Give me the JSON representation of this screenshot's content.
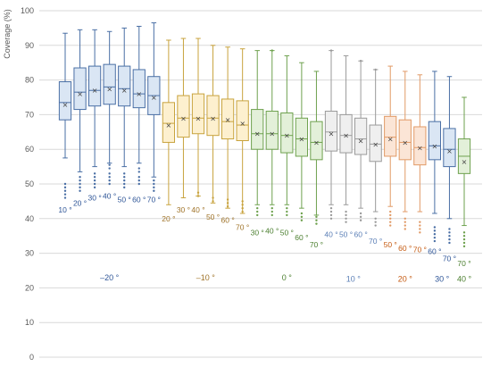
{
  "chart_data": {
    "type": "boxplot",
    "ylabel": "Coverage (%)",
    "ylim": [
      0,
      100
    ],
    "yticks": [
      0,
      10,
      20,
      30,
      40,
      50,
      60,
      70,
      80,
      90,
      100
    ],
    "grid": true,
    "mean_marker": "×",
    "groups": [
      {
        "label": "–20 °",
        "label_y": 23,
        "color": "#4a6fa5",
        "fill": "#dae6f4",
        "text_color": "#2e5597",
        "boxes": [
          {
            "label": "10 °",
            "label_y": 42.5,
            "min": 57.5,
            "q1": 68.5,
            "median": 73.5,
            "q3": 79.5,
            "max": 93.5,
            "mean": 73,
            "outliers": [
              50,
              49,
              48,
              47,
              46
            ]
          },
          {
            "label": "20 °",
            "label_y": 44.5,
            "min": 53.5,
            "q1": 71.5,
            "median": 76.5,
            "q3": 83.5,
            "max": 94.5,
            "mean": 76,
            "outliers": [
              52,
              51,
              50,
              49,
              48
            ]
          },
          {
            "label": "30 °",
            "label_y": 46,
            "min": 55,
            "q1": 72.5,
            "median": 77,
            "q3": 84,
            "max": 94.5,
            "mean": 77,
            "outliers": [
              53,
              52,
              51,
              50,
              49
            ]
          },
          {
            "label": "40 °",
            "label_y": 46.5,
            "min": 56,
            "q1": 73,
            "median": 78,
            "q3": 84.5,
            "max": 94,
            "mean": 77.5,
            "outliers": [
              55.5,
              54.5,
              53,
              52,
              51,
              50
            ]
          },
          {
            "label": "50 °",
            "label_y": 45.5,
            "min": 55,
            "q1": 72.5,
            "median": 77.5,
            "q3": 84,
            "max": 95,
            "mean": 77,
            "outliers": [
              53,
              52,
              51,
              50,
              49
            ]
          },
          {
            "label": "60 °",
            "label_y": 45.5,
            "min": 56,
            "q1": 72,
            "median": 76,
            "q3": 83,
            "max": 95.5,
            "mean": 76,
            "outliers": [
              54.5,
              53.5,
              52,
              51,
              50
            ]
          },
          {
            "label": "70 °",
            "label_y": 45.5,
            "min": 52,
            "q1": 70,
            "median": 75.5,
            "q3": 81,
            "max": 96.5,
            "mean": 75,
            "outliers": [
              51,
              50,
              49,
              48
            ]
          }
        ]
      },
      {
        "label": "–10 °",
        "label_y": 23,
        "color": "#c8a33e",
        "fill": "#fdf0cf",
        "text_color": "#a0742a",
        "boxes": [
          {
            "label": "20 °",
            "label_y": 40,
            "min": 44,
            "q1": 62,
            "median": 67.5,
            "q3": 73.5,
            "max": 91.5,
            "mean": 67,
            "outliers": []
          },
          {
            "label": "30 °",
            "label_y": 42.5,
            "min": 46,
            "q1": 63.5,
            "median": 69,
            "q3": 75.5,
            "max": 92,
            "mean": 69,
            "outliers": []
          },
          {
            "label": "40 °",
            "label_y": 42.5,
            "min": 46.5,
            "q1": 64.5,
            "median": 69,
            "q3": 76,
            "max": 92,
            "mean": 69,
            "outliers": [
              47.5,
              46.5
            ]
          },
          {
            "label": "50 °",
            "label_y": 40.5,
            "min": 44.5,
            "q1": 64,
            "median": 69,
            "q3": 75.5,
            "max": 90,
            "mean": 69,
            "outliers": [
              46,
              45
            ]
          },
          {
            "label": "60 °",
            "label_y": 39.5,
            "min": 43,
            "q1": 63,
            "median": 68,
            "q3": 74.5,
            "max": 89.5,
            "mean": 68.5,
            "outliers": [
              45.5,
              44.5,
              43.5
            ]
          },
          {
            "label": "70 °",
            "label_y": 37.5,
            "min": 41.5,
            "q1": 62.5,
            "median": 67,
            "q3": 74,
            "max": 89,
            "mean": 67.5,
            "outliers": [
              45,
              44,
              43,
              42
            ]
          }
        ]
      },
      {
        "label": "0 °",
        "label_y": 23,
        "color": "#6ea14e",
        "fill": "#e3f0d9",
        "text_color": "#4b7f2f",
        "boxes": [
          {
            "label": "30 °",
            "label_y": 36,
            "min": 44,
            "q1": 60,
            "median": 64.5,
            "q3": 71.5,
            "max": 88.5,
            "mean": 64.5,
            "outliers": [
              43,
              42,
              41
            ]
          },
          {
            "label": "40 °",
            "label_y": 36.5,
            "min": 44,
            "q1": 60,
            "median": 64.5,
            "q3": 71,
            "max": 88.5,
            "mean": 64.5,
            "outliers": [
              88.5,
              43,
              42,
              41
            ]
          },
          {
            "label": "50 °",
            "label_y": 36,
            "min": 44,
            "q1": 59,
            "median": 64,
            "q3": 70.5,
            "max": 87,
            "mean": 64,
            "outliers": [
              43,
              42,
              41
            ]
          },
          {
            "label": "60 °",
            "label_y": 34.5,
            "min": 43,
            "q1": 58,
            "median": 63,
            "q3": 69,
            "max": 85,
            "mean": 63,
            "outliers": [
              41.5,
              40.5,
              39.5
            ]
          },
          {
            "label": "70 °",
            "label_y": 32.5,
            "min": 41,
            "q1": 57,
            "median": 62,
            "q3": 68,
            "max": 82.5,
            "mean": 62,
            "outliers": [
              40.5,
              39.5,
              38.5
            ]
          }
        ]
      },
      {
        "label": "10 °",
        "label_y": 22.5,
        "color": "#9a9a9a",
        "fill": "#efefef",
        "text_color": "#5b7fb6",
        "boxes": [
          {
            "label": "40 °",
            "label_y": 35.5,
            "min": 44,
            "q1": 59.5,
            "median": 65,
            "q3": 71,
            "max": 88.5,
            "mean": 64.5,
            "outliers": [
              88.5,
              43,
              42,
              41,
              40
            ]
          },
          {
            "label": "50 °",
            "label_y": 35.5,
            "min": 44,
            "q1": 59,
            "median": 64,
            "q3": 70,
            "max": 87,
            "mean": 64,
            "outliers": [
              42,
              41,
              40,
              39
            ]
          },
          {
            "label": "60 °",
            "label_y": 35.5,
            "min": 43,
            "q1": 58.5,
            "median": 63,
            "q3": 69,
            "max": 85.5,
            "mean": 62.5,
            "outliers": [
              85.5,
              41.5,
              40.5,
              39.5
            ]
          },
          {
            "label": "70 °",
            "label_y": 33.5,
            "min": 42,
            "q1": 56.5,
            "median": 61.5,
            "q3": 67,
            "max": 83,
            "mean": 61.5,
            "outliers": [
              83,
              40,
              39,
              38
            ]
          }
        ]
      },
      {
        "label": "20 °",
        "label_y": 22.5,
        "color": "#e19a66",
        "fill": "#fbe5d6",
        "text_color": "#c55a11",
        "boxes": [
          {
            "label": "50 °",
            "label_y": 32.5,
            "min": 43.5,
            "q1": 58,
            "median": 63.5,
            "q3": 69.5,
            "max": 84,
            "mean": 63,
            "outliers": [
              42,
              41,
              40,
              39,
              38
            ]
          },
          {
            "label": "60 °",
            "label_y": 31.5,
            "min": 42,
            "q1": 57,
            "median": 62,
            "q3": 68.5,
            "max": 82.5,
            "mean": 62,
            "outliers": [
              40,
              39,
              38,
              37
            ]
          },
          {
            "label": "70 °",
            "label_y": 31,
            "min": 42,
            "q1": 55.5,
            "median": 60.5,
            "q3": 66.5,
            "max": 81.5,
            "mean": 60.5,
            "outliers": [
              39,
              38,
              37,
              36
            ]
          }
        ]
      },
      {
        "label": "30 °",
        "label_y": 22.5,
        "color": "#4a6fa5",
        "fill": "#dae6f4",
        "text_color": "#2e5597",
        "boxes": [
          {
            "label": "60 °",
            "label_y": 30.5,
            "min": 41.5,
            "q1": 57,
            "median": 61,
            "q3": 68,
            "max": 82.5,
            "mean": 61,
            "outliers": [
              37.5,
              36.5,
              35.5,
              34.5,
              33.5
            ]
          },
          {
            "label": "70 °",
            "label_y": 28.5,
            "min": 40,
            "q1": 55,
            "median": 60,
            "q3": 66,
            "max": 81,
            "mean": 59.5,
            "outliers": [
              37,
              36,
              35,
              34,
              33
            ]
          }
        ]
      },
      {
        "label": "40 °",
        "label_y": 22.5,
        "color": "#6ea14e",
        "fill": "#e3f0d9",
        "text_color": "#4b7f2f",
        "boxes": [
          {
            "label": "70 °",
            "label_y": 27,
            "min": 38,
            "q1": 53,
            "median": 58,
            "q3": 63,
            "max": 75,
            "mean": 56.5,
            "outliers": [
              36,
              35,
              34,
              33,
              32
            ]
          }
        ]
      }
    ]
  }
}
